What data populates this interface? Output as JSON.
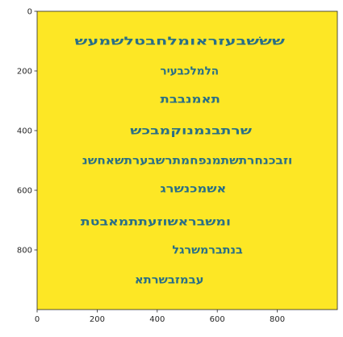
{
  "image": {
    "colors": {
      "background": "#fde725",
      "ink": "#2a6f86",
      "axis": "#262626"
    },
    "x_axis": {
      "ticks": [
        {
          "value": 0,
          "label": "0"
        },
        {
          "value": 200,
          "label": "200"
        },
        {
          "value": 400,
          "label": "400"
        },
        {
          "value": 600,
          "label": "600"
        },
        {
          "value": 800,
          "label": "800"
        }
      ],
      "range": [
        0,
        1000
      ]
    },
    "y_axis": {
      "ticks": [
        {
          "value": 0,
          "label": "0"
        },
        {
          "value": 200,
          "label": "200"
        },
        {
          "value": 400,
          "label": "400"
        },
        {
          "value": 600,
          "label": "600"
        },
        {
          "value": 800,
          "label": "800"
        }
      ],
      "range": [
        0,
        1000
      ],
      "inverted": true
    },
    "inscription_lines": [
      {
        "text": "שששׁבעזראומלחבטלשמעש",
        "x_start": 125,
        "x_end": 825,
        "y": 100
      },
      {
        "text": "הלמלכבעיר",
        "x_start": 410,
        "x_end": 605,
        "y": 200
      },
      {
        "text": "תאמנבבת",
        "x_start": 410,
        "x_end": 610,
        "y": 295
      },
      {
        "text": "שרתבנמנוקמבכש",
        "x_start": 310,
        "x_end": 715,
        "y": 400
      },
      {
        "text": "וזבכנחרתשתמנפחמתרשבערתשאחשנ",
        "x_start": 150,
        "x_end": 850,
        "y": 500
      },
      {
        "text": "אשמכנשרג",
        "x_start": 410,
        "x_end": 630,
        "y": 595
      },
      {
        "text": "ומשבראשוזעתתמאבטת",
        "x_start": 145,
        "x_end": 645,
        "y": 705
      },
      {
        "text": "בנתברמשרגל",
        "x_start": 450,
        "x_end": 685,
        "y": 800
      },
      {
        "text": "עבמזבשרתא",
        "x_start": 325,
        "x_end": 555,
        "y": 900
      }
    ]
  }
}
